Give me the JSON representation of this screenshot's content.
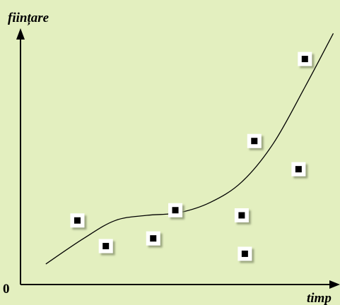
{
  "chart_data": {
    "type": "scatter",
    "title": "",
    "xlabel": "timp",
    "ylabel": "ființare",
    "origin_label": "0",
    "xlim": [
      0,
      10
    ],
    "ylim": [
      0,
      10
    ],
    "grid": false,
    "legend": "none",
    "series": [
      {
        "kind": "points",
        "points": [
          {
            "x": 1.8,
            "y": 2.5
          },
          {
            "x": 2.7,
            "y": 1.5
          },
          {
            "x": 4.2,
            "y": 1.8
          },
          {
            "x": 4.9,
            "y": 2.9
          },
          {
            "x": 7.0,
            "y": 2.7
          },
          {
            "x": 7.1,
            "y": 1.2
          },
          {
            "x": 7.4,
            "y": 5.6
          },
          {
            "x": 8.8,
            "y": 4.5
          },
          {
            "x": 9.0,
            "y": 8.8
          }
        ]
      },
      {
        "kind": "curve",
        "points": [
          {
            "x": 0.8,
            "y": 0.8
          },
          {
            "x": 2.0,
            "y": 1.8
          },
          {
            "x": 3.0,
            "y": 2.5
          },
          {
            "x": 4.0,
            "y": 2.7
          },
          {
            "x": 5.0,
            "y": 2.8
          },
          {
            "x": 6.0,
            "y": 3.2
          },
          {
            "x": 7.0,
            "y": 4.0
          },
          {
            "x": 8.0,
            "y": 5.5
          },
          {
            "x": 9.0,
            "y": 7.7
          },
          {
            "x": 9.9,
            "y": 9.8
          }
        ]
      }
    ]
  },
  "colors": {
    "background": "#e3efbf",
    "axis": "#000000",
    "marker_outer": "#ffffff",
    "marker_inner": "#000000",
    "curve": "#000000"
  }
}
